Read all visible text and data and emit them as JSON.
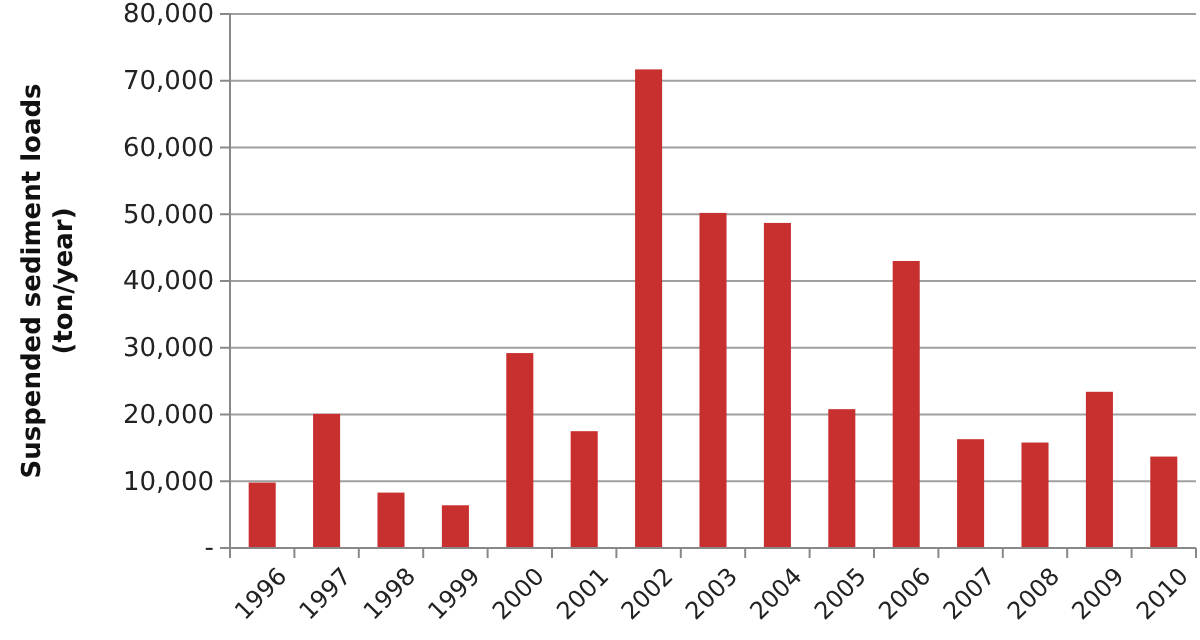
{
  "chart_data": {
    "type": "bar",
    "ylabel": "Suspended sediment loads (ton/year)",
    "categories": [
      "1996",
      "1997",
      "1998",
      "1999",
      "2000",
      "2001",
      "2002",
      "2003",
      "2004",
      "2005",
      "2006",
      "2007",
      "2008",
      "2009",
      "2010"
    ],
    "values": [
      9800,
      20100,
      8300,
      6400,
      29200,
      17500,
      71700,
      50200,
      48700,
      20800,
      43000,
      16300,
      15800,
      23400,
      13700
    ],
    "color": "#c8302f",
    "ylim": [
      0,
      80000
    ],
    "yticks": [
      {
        "value": 0,
        "label": "-"
      },
      {
        "value": 10000,
        "label": "10,000"
      },
      {
        "value": 20000,
        "label": "20,000"
      },
      {
        "value": 30000,
        "label": "30,000"
      },
      {
        "value": 40000,
        "label": "40,000"
      },
      {
        "value": 50000,
        "label": "50,000"
      },
      {
        "value": 60000,
        "label": "60,000"
      },
      {
        "value": 70000,
        "label": "70,000"
      },
      {
        "value": 80000,
        "label": "80,000"
      }
    ],
    "grid": "y"
  }
}
